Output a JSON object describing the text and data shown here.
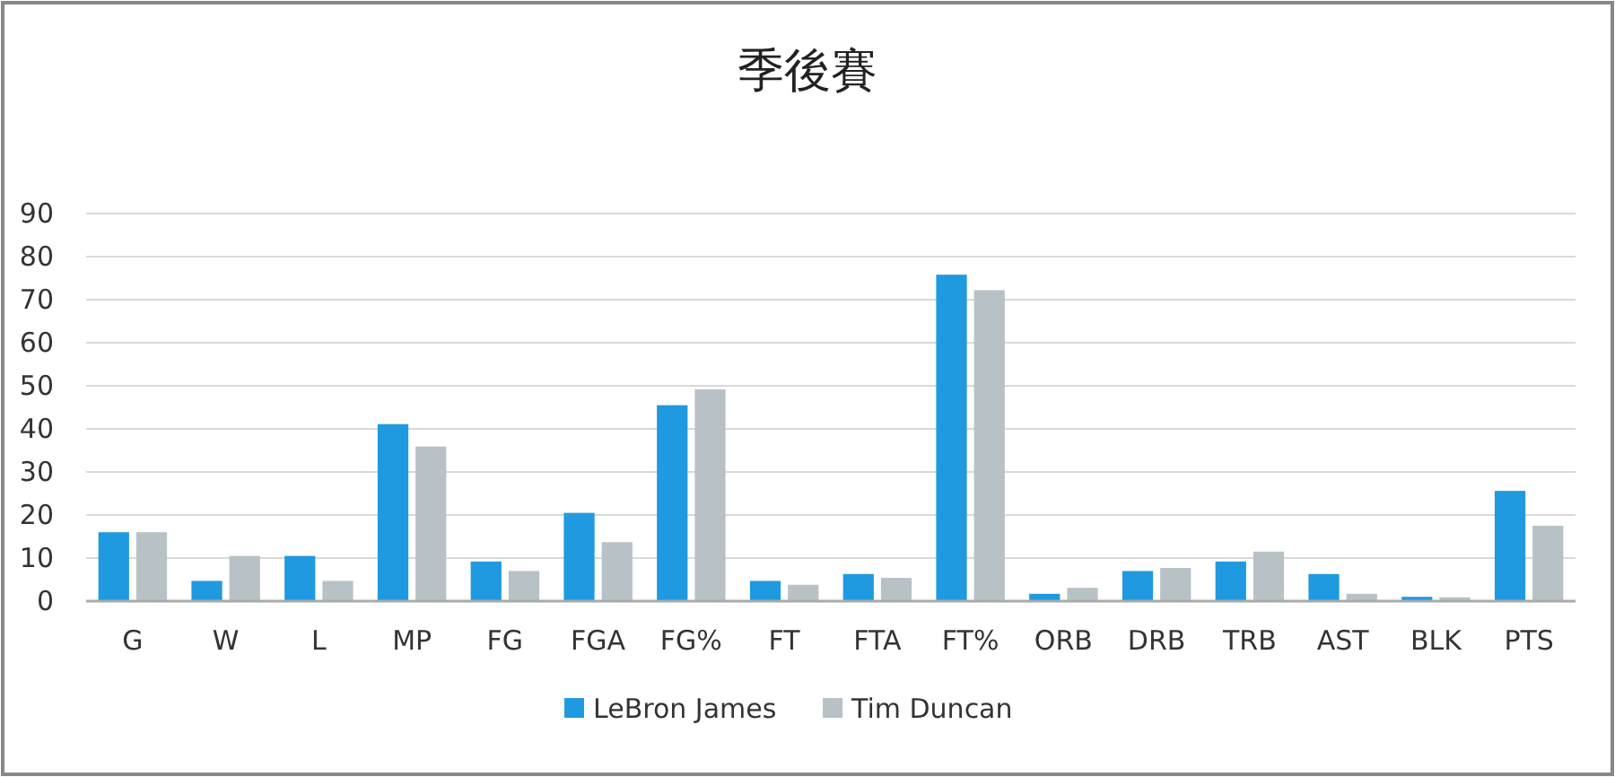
{
  "chart_data": {
    "type": "bar",
    "title": "季後賽",
    "categories": [
      "G",
      "W",
      "L",
      "MP",
      "FG",
      "FGA",
      "FG%",
      "FT",
      "FTA",
      "FT%",
      "ORB",
      "DRB",
      "TRB",
      "AST",
      "BLK",
      "PTS"
    ],
    "series": [
      {
        "name": "LeBron James",
        "color": "#1f9ae0",
        "values": [
          16,
          4.7,
          10.5,
          41.1,
          9.2,
          20.5,
          45.5,
          4.7,
          6.3,
          75.8,
          1.7,
          7.0,
          9.2,
          6.3,
          1.0,
          25.6
        ]
      },
      {
        "name": "Tim Duncan",
        "color": "#b8c2c6",
        "values": [
          16,
          10.5,
          4.7,
          35.9,
          7.0,
          13.7,
          49.2,
          3.8,
          5.4,
          72.2,
          3.1,
          7.7,
          11.5,
          1.7,
          0.9,
          17.5
        ]
      }
    ],
    "ylim": [
      0,
      90
    ],
    "yticks": [
      0,
      10,
      20,
      30,
      40,
      50,
      60,
      70,
      80,
      90
    ],
    "grid": "y",
    "legend": "bottom"
  }
}
